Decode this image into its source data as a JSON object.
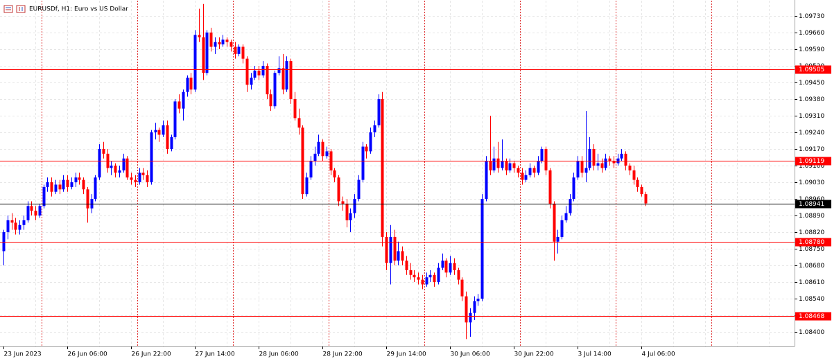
{
  "chart_data": {
    "type": "candlestick",
    "title": "EURUSDf, H1:  Euro vs US Dollar",
    "up_color": "#0000ff",
    "down_color": "#ff0000",
    "ylim": [
      1.08339,
      1.09794
    ],
    "yticks": [
      {
        "value": 1.084,
        "label": "1.08400"
      },
      {
        "value": 1.0847,
        "label": "1.08470"
      },
      {
        "value": 1.0854,
        "label": "1.08540"
      },
      {
        "value": 1.0861,
        "label": "1.08610"
      },
      {
        "value": 1.0868,
        "label": "1.08680"
      },
      {
        "value": 1.0875,
        "label": "1.08750"
      },
      {
        "value": 1.0882,
        "label": "1.08820"
      },
      {
        "value": 1.0889,
        "label": "1.08890"
      },
      {
        "value": 1.0896,
        "label": "1.08960"
      },
      {
        "value": 1.0903,
        "label": "1.09030"
      },
      {
        "value": 1.091,
        "label": "1.09100"
      },
      {
        "value": 1.0917,
        "label": "1.09170"
      },
      {
        "value": 1.0924,
        "label": "1.09240"
      },
      {
        "value": 1.0931,
        "label": "1.09310"
      },
      {
        "value": 1.0938,
        "label": "1.09380"
      },
      {
        "value": 1.0945,
        "label": "1.09450"
      },
      {
        "value": 1.0952,
        "label": "1.09520"
      },
      {
        "value": 1.0959,
        "label": "1.09590"
      },
      {
        "value": 1.0966,
        "label": "1.09660"
      },
      {
        "value": 1.0973,
        "label": "1.09730"
      }
    ],
    "levels": [
      {
        "value": 1.09505,
        "label": "1.09505",
        "color": "#ff0000"
      },
      {
        "value": 1.09119,
        "label": "1.09119",
        "color": "#ff0000"
      },
      {
        "value": 1.08941,
        "label": "1.08941",
        "color": "#000000"
      },
      {
        "value": 1.0878,
        "label": "1.08780",
        "color": "#ff0000"
      },
      {
        "value": 1.08468,
        "label": "1.08468",
        "color": "#ff0000"
      }
    ],
    "xticks": [
      {
        "value": 0,
        "label": "23 Jun 2023"
      },
      {
        "value": 16,
        "label": "26 Jun 06:00"
      },
      {
        "value": 32,
        "label": "26 Jun 22:00"
      },
      {
        "value": 48,
        "label": "27 Jun 14:00"
      },
      {
        "value": 64,
        "label": "28 Jun 06:00"
      },
      {
        "value": 80,
        "label": "28 Jun 22:00"
      },
      {
        "value": 96,
        "label": "29 Jun 14:00"
      },
      {
        "value": 112,
        "label": "30 Jun 06:00"
      },
      {
        "value": 128,
        "label": "30 Jun 22:00"
      },
      {
        "value": 144,
        "label": "3 Jul 14:00"
      },
      {
        "value": 160,
        "label": "4 Jul 06:00"
      }
    ],
    "candles": [
      [
        1.0874,
        1.0883,
        1.0868,
        1.0882
      ],
      [
        1.0882,
        1.0889,
        1.0879,
        1.0887
      ],
      [
        1.0887,
        1.089,
        1.0883,
        1.0886
      ],
      [
        1.0886,
        1.0888,
        1.0881,
        1.0883
      ],
      [
        1.0883,
        1.0887,
        1.0881,
        1.0885
      ],
      [
        1.0885,
        1.0889,
        1.0883,
        1.0887
      ],
      [
        1.0887,
        1.0895,
        1.0886,
        1.0893
      ],
      [
        1.0893,
        1.0895,
        1.0889,
        1.0891
      ],
      [
        1.0891,
        1.0893,
        1.0887,
        1.0889
      ],
      [
        1.0889,
        1.0894,
        1.0888,
        1.0893
      ],
      [
        1.0893,
        1.0902,
        1.0892,
        1.0901
      ],
      [
        1.0901,
        1.0905,
        1.0899,
        1.0903
      ],
      [
        1.0903,
        1.0905,
        1.0897,
        1.0899
      ],
      [
        1.0899,
        1.0904,
        1.0898,
        1.0902
      ],
      [
        1.0902,
        1.0904,
        1.0898,
        1.09
      ],
      [
        1.09,
        1.0906,
        1.0899,
        1.0904
      ],
      [
        1.0904,
        1.0906,
        1.0899,
        1.0901
      ],
      [
        1.0901,
        1.0905,
        1.09,
        1.0903
      ],
      [
        1.0903,
        1.0907,
        1.0901,
        1.0905
      ],
      [
        1.0905,
        1.0907,
        1.0902,
        1.0904
      ],
      [
        1.0904,
        1.0905,
        1.0898,
        1.09
      ],
      [
        1.09,
        1.0901,
        1.0886,
        1.0892
      ],
      [
        1.0892,
        1.0898,
        1.089,
        1.0896
      ],
      [
        1.0896,
        1.0906,
        1.0895,
        1.0905
      ],
      [
        1.0905,
        1.0919,
        1.0904,
        1.0917
      ],
      [
        1.0917,
        1.092,
        1.0913,
        1.0915
      ],
      [
        1.0915,
        1.0917,
        1.0907,
        1.0909
      ],
      [
        1.0909,
        1.0912,
        1.0906,
        1.091
      ],
      [
        1.091,
        1.0911,
        1.0905,
        1.0907
      ],
      [
        1.0907,
        1.091,
        1.0905,
        1.0908
      ],
      [
        1.0908,
        1.0915,
        1.0907,
        1.0913
      ],
      [
        1.0913,
        1.0914,
        1.0904,
        1.0905
      ],
      [
        1.0905,
        1.0907,
        1.0902,
        1.0904
      ],
      [
        1.0904,
        1.0906,
        1.0901,
        1.0903
      ],
      [
        1.0903,
        1.0909,
        1.0902,
        1.0907
      ],
      [
        1.0907,
        1.0909,
        1.0904,
        1.0906
      ],
      [
        1.0906,
        1.0908,
        1.0901,
        1.0903
      ],
      [
        1.0903,
        1.0925,
        1.0902,
        1.0924
      ],
      [
        1.0924,
        1.0928,
        1.0921,
        1.0925
      ],
      [
        1.0925,
        1.0926,
        1.092,
        1.0923
      ],
      [
        1.0923,
        1.0929,
        1.0922,
        1.0927
      ],
      [
        1.0927,
        1.0929,
        1.0915,
        1.0917
      ],
      [
        1.0917,
        1.0923,
        1.0916,
        1.0922
      ],
      [
        1.0922,
        1.0938,
        1.0921,
        1.0937
      ],
      [
        1.0937,
        1.094,
        1.0932,
        1.0934
      ],
      [
        1.0934,
        1.0942,
        1.0929,
        1.0941
      ],
      [
        1.0941,
        1.0948,
        1.0939,
        1.0947
      ],
      [
        1.0947,
        1.0949,
        1.094,
        1.0942
      ],
      [
        1.0942,
        1.0967,
        1.0941,
        1.0965
      ],
      [
        1.0965,
        1.0976,
        1.0962,
        1.0964
      ],
      [
        1.0964,
        1.0978,
        1.0946,
        1.0949
      ],
      [
        1.0949,
        1.0967,
        1.0948,
        1.0966
      ],
      [
        1.0966,
        1.0968,
        1.0958,
        1.096
      ],
      [
        1.096,
        1.0964,
        1.0957,
        1.0962
      ],
      [
        1.0962,
        1.0964,
        1.0959,
        1.0961
      ],
      [
        1.0961,
        1.0965,
        1.096,
        1.0963
      ],
      [
        1.0963,
        1.0964,
        1.096,
        1.0962
      ],
      [
        1.0962,
        1.0963,
        1.0958,
        1.096
      ],
      [
        1.096,
        1.0962,
        1.0955,
        1.0957
      ],
      [
        1.0957,
        1.0961,
        1.0956,
        1.096
      ],
      [
        1.096,
        1.0961,
        1.0953,
        1.0955
      ],
      [
        1.0955,
        1.0956,
        1.0941,
        1.0944
      ],
      [
        1.0944,
        1.0949,
        1.0942,
        1.0947
      ],
      [
        1.0947,
        1.0952,
        1.0946,
        1.095
      ],
      [
        1.095,
        1.0952,
        1.0946,
        1.0948
      ],
      [
        1.0948,
        1.0954,
        1.0947,
        1.0952
      ],
      [
        1.0952,
        1.0953,
        1.0938,
        1.094
      ],
      [
        1.094,
        1.0942,
        1.0933,
        1.0935
      ],
      [
        1.0935,
        1.095,
        1.0934,
        1.0949
      ],
      [
        1.0949,
        1.0956,
        1.0948,
        1.0951
      ],
      [
        1.0951,
        1.0957,
        1.094,
        1.0942
      ],
      [
        1.0942,
        1.0956,
        1.0941,
        1.0954
      ],
      [
        1.0954,
        1.0955,
        1.0936,
        1.0938
      ],
      [
        1.0938,
        1.0941,
        1.0929,
        1.093
      ],
      [
        1.093,
        1.0934,
        1.0923,
        1.0926
      ],
      [
        1.0926,
        1.0927,
        1.0896,
        1.0898
      ],
      [
        1.0898,
        1.0907,
        1.0897,
        1.0905
      ],
      [
        1.0905,
        1.0914,
        1.0904,
        1.0912
      ],
      [
        1.0912,
        1.0918,
        1.091,
        1.0915
      ],
      [
        1.0915,
        1.0923,
        1.0914,
        1.092
      ],
      [
        1.092,
        1.0921,
        1.0912,
        1.0914
      ],
      [
        1.0914,
        1.0918,
        1.0913,
        1.0916
      ],
      [
        1.0916,
        1.0917,
        1.0906,
        1.0908
      ],
      [
        1.0908,
        1.0909,
        1.0903,
        1.0905
      ],
      [
        1.0905,
        1.0906,
        1.0893,
        1.0895
      ],
      [
        1.0895,
        1.0897,
        1.0891,
        1.0894
      ],
      [
        1.0894,
        1.0896,
        1.0884,
        1.0887
      ],
      [
        1.0887,
        1.0892,
        1.0882,
        1.089
      ],
      [
        1.089,
        1.0898,
        1.0888,
        1.0896
      ],
      [
        1.0896,
        1.0906,
        1.0895,
        1.0904
      ],
      [
        1.0904,
        1.092,
        1.0903,
        1.0918
      ],
      [
        1.0918,
        1.0919,
        1.0913,
        1.0916
      ],
      [
        1.0916,
        1.0926,
        1.0915,
        1.0924
      ],
      [
        1.0924,
        1.0929,
        1.0922,
        1.0927
      ],
      [
        1.0927,
        1.094,
        1.0926,
        1.0938
      ],
      [
        1.0938,
        1.0941,
        1.0876,
        1.088
      ],
      [
        1.088,
        1.0882,
        1.0866,
        1.0869
      ],
      [
        1.0869,
        1.0885,
        1.086,
        1.088
      ],
      [
        1.088,
        1.0883,
        1.0868,
        1.087
      ],
      [
        1.087,
        1.0878,
        1.0868,
        1.0874
      ],
      [
        1.0874,
        1.0876,
        1.0868,
        1.087
      ],
      [
        1.087,
        1.0872,
        1.0864,
        1.0866
      ],
      [
        1.0866,
        1.0869,
        1.0862,
        1.0864
      ],
      [
        1.0864,
        1.0866,
        1.0861,
        1.0863
      ],
      [
        1.0863,
        1.0865,
        1.086,
        1.0862
      ],
      [
        1.0862,
        1.0864,
        1.0858,
        1.086
      ],
      [
        1.086,
        1.0865,
        1.0859,
        1.0863
      ],
      [
        1.0863,
        1.0866,
        1.0861,
        1.0864
      ],
      [
        1.0864,
        1.0865,
        1.0859,
        1.0861
      ],
      [
        1.0861,
        1.0869,
        1.086,
        1.0867
      ],
      [
        1.0867,
        1.0873,
        1.0866,
        1.087
      ],
      [
        1.087,
        1.0871,
        1.0863,
        1.0865
      ],
      [
        1.0865,
        1.0872,
        1.0864,
        1.0869
      ],
      [
        1.0869,
        1.0871,
        1.0864,
        1.0866
      ],
      [
        1.0866,
        1.0867,
        1.086,
        1.0862
      ],
      [
        1.0862,
        1.0863,
        1.0853,
        1.0855
      ],
      [
        1.0855,
        1.0857,
        1.0837,
        1.0844
      ],
      [
        1.0844,
        1.085,
        1.0838,
        1.0848
      ],
      [
        1.0848,
        1.0855,
        1.0845,
        1.0853
      ],
      [
        1.0853,
        1.0856,
        1.0851,
        1.0854
      ],
      [
        1.0854,
        1.0898,
        1.0853,
        1.0896
      ],
      [
        1.0896,
        1.0914,
        1.0895,
        1.0912
      ],
      [
        1.0912,
        1.0931,
        1.0906,
        1.0908
      ],
      [
        1.0908,
        1.0918,
        1.0907,
        1.0913
      ],
      [
        1.0913,
        1.092,
        1.0907,
        1.0909
      ],
      [
        1.0909,
        1.0921,
        1.0908,
        1.0912
      ],
      [
        1.0912,
        1.0913,
        1.0906,
        1.0908
      ],
      [
        1.0908,
        1.0913,
        1.0907,
        1.0911
      ],
      [
        1.0911,
        1.0912,
        1.0907,
        1.0909
      ],
      [
        1.0909,
        1.091,
        1.0905,
        1.0907
      ],
      [
        1.0907,
        1.0909,
        1.0902,
        1.0904
      ],
      [
        1.0904,
        1.0908,
        1.0903,
        1.0906
      ],
      [
        1.0906,
        1.0911,
        1.0905,
        1.0909
      ],
      [
        1.0909,
        1.091,
        1.0905,
        1.0907
      ],
      [
        1.0907,
        1.0914,
        1.0906,
        1.0912
      ],
      [
        1.0912,
        1.0918,
        1.0911,
        1.0917
      ],
      [
        1.0917,
        1.0918,
        1.0906,
        1.0908
      ],
      [
        1.0908,
        1.0909,
        1.0892,
        1.0894
      ],
      [
        1.0894,
        1.0895,
        1.087,
        1.0878
      ],
      [
        1.0878,
        1.0883,
        1.0873,
        1.088
      ],
      [
        1.088,
        1.0889,
        1.0879,
        1.0887
      ],
      [
        1.0887,
        1.0893,
        1.0886,
        1.089
      ],
      [
        1.089,
        1.0898,
        1.0889,
        1.0896
      ],
      [
        1.0896,
        1.0907,
        1.0895,
        1.0905
      ],
      [
        1.0905,
        1.0914,
        1.0904,
        1.0912
      ],
      [
        1.0912,
        1.0914,
        1.0905,
        1.0907
      ],
      [
        1.0907,
        1.0933,
        1.0903,
        1.0909
      ],
      [
        1.0909,
        1.0922,
        1.0908,
        1.0917
      ],
      [
        1.0917,
        1.0919,
        1.0908,
        1.091
      ],
      [
        1.091,
        1.0915,
        1.0908,
        1.0911
      ],
      [
        1.0911,
        1.0913,
        1.0907,
        1.0909
      ],
      [
        1.0909,
        1.0915,
        1.0908,
        1.0913
      ],
      [
        1.0913,
        1.0914,
        1.091,
        1.0912
      ],
      [
        1.0912,
        1.0914,
        1.0909,
        1.0911
      ],
      [
        1.0911,
        1.0915,
        1.091,
        1.0913
      ],
      [
        1.0913,
        1.0917,
        1.0912,
        1.0915
      ],
      [
        1.0915,
        1.0916,
        1.0908,
        1.091
      ],
      [
        1.091,
        1.0911,
        1.0906,
        1.0908
      ],
      [
        1.0908,
        1.091,
        1.0902,
        1.0904
      ],
      [
        1.0904,
        1.0905,
        1.0899,
        1.0901
      ],
      [
        1.0901,
        1.0902,
        1.0897,
        1.0898
      ],
      [
        1.0898,
        1.0899,
        1.0893,
        1.08941
      ]
    ]
  }
}
